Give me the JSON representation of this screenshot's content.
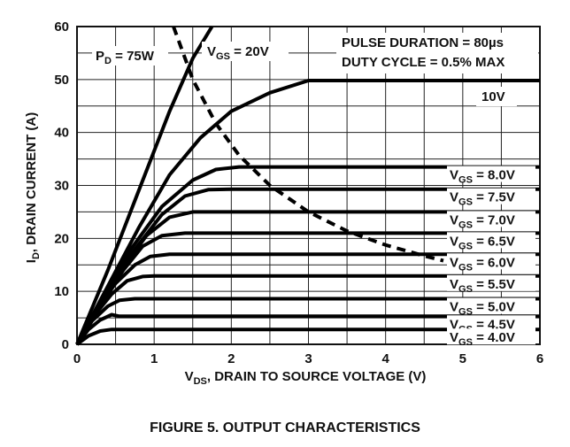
{
  "caption": "FIGURE 5.  OUTPUT CHARACTERISTICS",
  "chart_data": {
    "type": "line",
    "xlabel_prefix": "V",
    "xlabel_sub": "DS",
    "xlabel_rest": ", DRAIN TO SOURCE VOLTAGE (V)",
    "ylabel_prefix": "I",
    "ylabel_sub": "D",
    "ylabel_rest": ", DRAIN CURRENT (A)",
    "xlim": [
      0,
      6
    ],
    "ylim": [
      0,
      60
    ],
    "xticks": [
      "0",
      "1",
      "2",
      "3",
      "4",
      "5",
      "6"
    ],
    "yticks": [
      "0",
      "10",
      "20",
      "30",
      "40",
      "50",
      "60"
    ],
    "grid": true,
    "annotations": {
      "pulse": "PULSE DURATION = 80µs",
      "duty": "DUTY CYCLE = 0.5% MAX",
      "pd_prefix": "P",
      "pd_sub": "D",
      "pd_rest": " = 75W",
      "vgs20_prefix": "V",
      "vgs20_sub": "GS",
      "vgs20_rest": " = 20V",
      "ten_v": "10V"
    },
    "series": [
      {
        "label_prefix": "V",
        "label_sub": "GS",
        "label_rest": " = 8.0V",
        "points": [
          [
            0,
            0
          ],
          [
            0.3,
            8
          ],
          [
            0.7,
            18
          ],
          [
            1.1,
            26
          ],
          [
            1.5,
            31
          ],
          [
            1.8,
            33
          ],
          [
            2.1,
            33.5
          ],
          [
            6,
            33.5
          ]
        ]
      },
      {
        "label_prefix": "V",
        "label_sub": "GS",
        "label_rest": " = 7.5V",
        "points": [
          [
            0,
            0
          ],
          [
            0.3,
            8
          ],
          [
            0.7,
            17
          ],
          [
            1.1,
            24.5
          ],
          [
            1.4,
            28
          ],
          [
            1.7,
            29.2
          ],
          [
            2.0,
            29.3
          ],
          [
            6,
            29.3
          ]
        ]
      },
      {
        "label_prefix": "V",
        "label_sub": "GS",
        "label_rest": " = 7.0V",
        "points": [
          [
            0,
            0
          ],
          [
            0.3,
            7.5
          ],
          [
            0.6,
            14.5
          ],
          [
            0.9,
            20.5
          ],
          [
            1.2,
            24
          ],
          [
            1.5,
            25
          ],
          [
            6,
            25
          ]
        ]
      },
      {
        "label_prefix": "V",
        "label_sub": "GS",
        "label_rest": " = 6.5V",
        "points": [
          [
            0,
            0
          ],
          [
            0.3,
            7.5
          ],
          [
            0.6,
            14
          ],
          [
            0.85,
            18.5
          ],
          [
            1.1,
            20.5
          ],
          [
            1.4,
            21
          ],
          [
            6,
            21
          ]
        ]
      },
      {
        "label_prefix": "V",
        "label_sub": "GS",
        "label_rest": " = 6.0V",
        "points": [
          [
            0,
            0
          ],
          [
            0.25,
            6.5
          ],
          [
            0.5,
            11.5
          ],
          [
            0.75,
            15
          ],
          [
            0.95,
            16.6
          ],
          [
            1.2,
            17
          ],
          [
            6,
            17
          ]
        ]
      },
      {
        "label_prefix": "V",
        "label_sub": "GS",
        "label_rest": " = 5.5V",
        "points": [
          [
            0,
            0
          ],
          [
            0.2,
            5
          ],
          [
            0.45,
            9.5
          ],
          [
            0.65,
            12
          ],
          [
            0.85,
            12.8
          ],
          [
            1.0,
            12.9
          ],
          [
            6,
            12.9
          ]
        ]
      },
      {
        "label_prefix": "V",
        "label_sub": "GS",
        "label_rest": " = 5.0V",
        "points": [
          [
            0,
            0
          ],
          [
            0.2,
            4.5
          ],
          [
            0.4,
            7.2
          ],
          [
            0.55,
            8.3
          ],
          [
            0.75,
            8.6
          ],
          [
            6,
            8.6
          ]
        ]
      },
      {
        "label_prefix": "V",
        "label_sub": "GS",
        "label_rest": " = 4.5V",
        "points": [
          [
            0,
            0
          ],
          [
            0.15,
            2.8
          ],
          [
            0.3,
            4.6
          ],
          [
            0.45,
            5.6
          ],
          [
            0.55,
            5.3
          ],
          [
            6,
            5.3
          ]
        ]
      },
      {
        "label_prefix": "V",
        "label_sub": "GS",
        "label_rest": " = 4.0V",
        "points": [
          [
            0,
            0
          ],
          [
            0.15,
            1.6
          ],
          [
            0.3,
            2.5
          ],
          [
            0.45,
            2.8
          ],
          [
            6,
            2.8
          ]
        ]
      },
      {
        "label": "10V",
        "points": [
          [
            0,
            0
          ],
          [
            0.4,
            11
          ],
          [
            0.8,
            22
          ],
          [
            1.2,
            32
          ],
          [
            1.6,
            39
          ],
          [
            2.0,
            44
          ],
          [
            2.5,
            47.5
          ],
          [
            3.0,
            49.8
          ],
          [
            6,
            49.8
          ]
        ]
      },
      {
        "label": "VGS = 20V",
        "points": [
          [
            0,
            0
          ],
          [
            0.4,
            14
          ],
          [
            0.8,
            29
          ],
          [
            1.2,
            44
          ],
          [
            1.5,
            54
          ],
          [
            1.75,
            60
          ]
        ]
      },
      {
        "label": "PD = 75W",
        "dashed": true,
        "points": [
          [
            1.25,
            60
          ],
          [
            1.5,
            50
          ],
          [
            1.8,
            41.7
          ],
          [
            2.1,
            35.7
          ],
          [
            2.5,
            30
          ],
          [
            3.0,
            25
          ],
          [
            3.5,
            21.4
          ],
          [
            4.0,
            18.75
          ],
          [
            4.5,
            16.7
          ],
          [
            4.75,
            15.8
          ]
        ]
      }
    ]
  }
}
